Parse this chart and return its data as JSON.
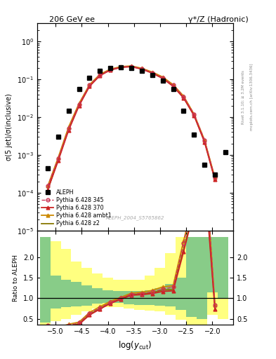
{
  "title_left": "206 GeV ee",
  "title_right": "γ*/Z (Hadronic)",
  "ylabel_main": "σ(5 jet)/σ(inclusive)",
  "ylabel_ratio": "Ratio to ALEPH",
  "xlabel": "log(y_{cut})",
  "watermark": "ALEPH_2004_S5765862",
  "right_label": "Rivet 3.1.10; ≥ 3.2M events",
  "right_label2": "mcplots.cern.ch [arXiv:1306.3436]",
  "aleph_x": [
    -5.15,
    -4.95,
    -4.75,
    -4.55,
    -4.35,
    -4.15,
    -3.95,
    -3.75,
    -3.55,
    -3.35,
    -3.15,
    -2.95,
    -2.75,
    -2.55,
    -2.35,
    -2.15,
    -1.95,
    -1.75
  ],
  "aleph_y": [
    0.00045,
    0.003,
    0.015,
    0.055,
    0.11,
    0.17,
    0.2,
    0.21,
    0.2,
    0.17,
    0.13,
    0.09,
    0.055,
    0.015,
    0.0035,
    0.00055,
    0.0003,
    0.0012
  ],
  "p345_x": [
    -5.15,
    -4.95,
    -4.75,
    -4.55,
    -4.35,
    -4.15,
    -3.95,
    -3.75,
    -3.55,
    -3.35,
    -3.15,
    -2.95,
    -2.75,
    -2.55,
    -2.35,
    -2.15,
    -1.95
  ],
  "p345_y": [
    0.00015,
    0.0008,
    0.005,
    0.022,
    0.07,
    0.13,
    0.18,
    0.21,
    0.22,
    0.19,
    0.15,
    0.11,
    0.07,
    0.035,
    0.012,
    0.0025,
    0.00025
  ],
  "p370_x": [
    -5.15,
    -4.95,
    -4.75,
    -4.55,
    -4.35,
    -4.15,
    -3.95,
    -3.75,
    -3.55,
    -3.35,
    -3.15,
    -2.95,
    -2.75,
    -2.55,
    -2.35,
    -2.15,
    -1.95
  ],
  "p370_y": [
    0.00012,
    0.0007,
    0.0045,
    0.02,
    0.065,
    0.125,
    0.175,
    0.205,
    0.215,
    0.185,
    0.145,
    0.105,
    0.065,
    0.032,
    0.011,
    0.0022,
    0.00022
  ],
  "pambt1_x": [
    -5.15,
    -4.95,
    -4.75,
    -4.55,
    -4.35,
    -4.15,
    -3.95,
    -3.75,
    -3.55,
    -3.35,
    -3.15,
    -2.95,
    -2.75,
    -2.55,
    -2.35,
    -2.15,
    -1.95
  ],
  "pambt1_y": [
    0.00015,
    0.00085,
    0.0055,
    0.023,
    0.072,
    0.135,
    0.185,
    0.215,
    0.225,
    0.195,
    0.155,
    0.115,
    0.072,
    0.036,
    0.012,
    0.0025,
    0.00025
  ],
  "pz2_x": [
    -5.15,
    -4.95,
    -4.75,
    -4.55,
    -4.35,
    -4.15,
    -3.95,
    -3.75,
    -3.55,
    -3.35,
    -3.15,
    -2.95,
    -2.75,
    -2.55,
    -2.35,
    -2.15,
    -1.95
  ],
  "pz2_y": [
    0.00012,
    0.00075,
    0.0048,
    0.021,
    0.067,
    0.128,
    0.178,
    0.208,
    0.218,
    0.188,
    0.148,
    0.108,
    0.067,
    0.033,
    0.0112,
    0.0023,
    0.00023
  ],
  "color_345": "#cc3355",
  "color_370": "#cc2222",
  "color_ambt1": "#cc8800",
  "color_z2": "#887700",
  "ratio_band_x_edges": [
    -5.3,
    -5.1,
    -4.9,
    -4.7,
    -4.5,
    -4.3,
    -4.1,
    -3.9,
    -3.7,
    -3.5,
    -3.3,
    -3.1,
    -2.9,
    -2.7,
    -2.5,
    -2.3,
    -2.1,
    -1.9,
    -1.7
  ],
  "ratio_green_lo": [
    0.4,
    0.75,
    0.78,
    0.8,
    0.82,
    0.87,
    0.88,
    0.88,
    0.86,
    0.84,
    0.83,
    0.82,
    0.8,
    0.72,
    0.55,
    0.5,
    1.15,
    1.0
  ],
  "ratio_green_hi": [
    2.5,
    1.55,
    1.45,
    1.4,
    1.32,
    1.25,
    1.2,
    1.18,
    1.18,
    1.18,
    1.2,
    1.25,
    1.35,
    1.5,
    2.5,
    2.5,
    2.5,
    2.5
  ],
  "ratio_yellow_lo": [
    0.2,
    0.45,
    0.5,
    0.6,
    0.68,
    0.75,
    0.78,
    0.78,
    0.75,
    0.72,
    0.7,
    0.68,
    0.6,
    0.48,
    0.35,
    0.3,
    0.6,
    0.5
  ],
  "ratio_yellow_hi": [
    2.5,
    2.4,
    2.2,
    1.9,
    1.75,
    1.6,
    1.5,
    1.45,
    1.45,
    1.45,
    1.55,
    1.75,
    2.1,
    2.5,
    2.5,
    2.5,
    2.5,
    2.5
  ],
  "xlim": [
    -5.35,
    -1.6
  ],
  "ylim_main": [
    1e-05,
    3.0
  ],
  "ylim_ratio": [
    0.35,
    2.65
  ],
  "ratio_yticks": [
    0.5,
    1.0,
    1.5,
    2.0
  ]
}
